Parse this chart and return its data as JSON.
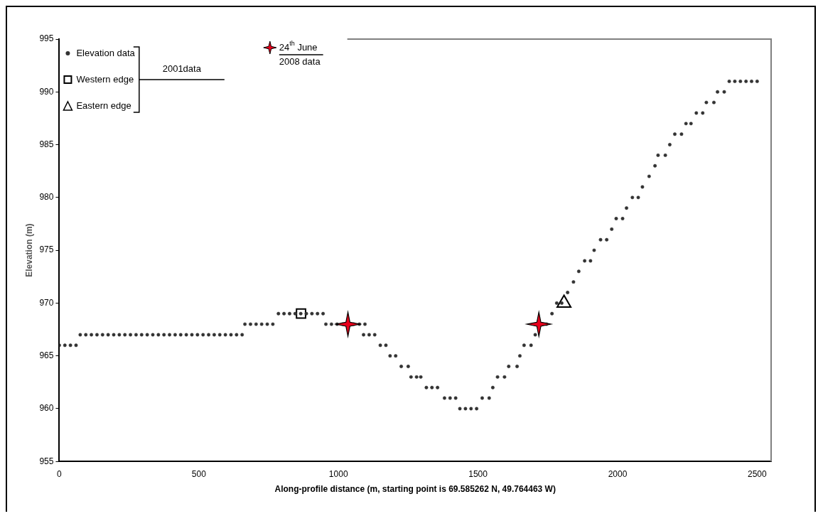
{
  "chart_data": {
    "type": "scatter",
    "xlabel": "Along-profile distance (m, starting point is 69.585262 N, 49.764463 W)",
    "ylabel": "Elevation (m)",
    "legend_title": "2001data",
    "xlim": [
      0,
      2550
    ],
    "xticks": [
      0,
      500,
      1000,
      1500,
      2000,
      2500
    ],
    "ylim": [
      955,
      995
    ],
    "yticks": [
      955,
      960,
      965,
      970,
      975,
      980,
      985,
      990,
      995
    ],
    "grid": false,
    "legend": "top left",
    "series": [
      {
        "name": "Elevation data",
        "color": "#333333",
        "marker": "circle",
        "x": [
          0,
          20,
          40,
          60,
          75,
          95,
          115,
          135,
          155,
          175,
          195,
          215,
          235,
          255,
          275,
          295,
          315,
          335,
          355,
          375,
          395,
          415,
          435,
          455,
          475,
          495,
          515,
          535,
          555,
          575,
          595,
          615,
          635,
          655,
          665,
          685,
          705,
          725,
          745,
          765,
          785,
          805,
          825,
          845,
          865,
          885,
          905,
          925,
          945,
          955,
          975,
          995,
          1015,
          1055,
          1075,
          1095,
          1090,
          1110,
          1130,
          1150,
          1170,
          1185,
          1205,
          1225,
          1250,
          1260,
          1280,
          1295,
          1315,
          1335,
          1355,
          1380,
          1400,
          1420,
          1435,
          1455,
          1475,
          1495,
          1515,
          1540,
          1553,
          1570,
          1595,
          1610,
          1640,
          1650,
          1665,
          1690,
          1705,
          1745,
          1765,
          1782,
          1800,
          1821,
          1842,
          1861,
          1882,
          1903,
          1916,
          1939,
          1961,
          1979,
          1995,
          2018,
          2032,
          2053,
          2074,
          2089,
          2113,
          2134,
          2145,
          2171,
          2187,
          2205,
          2229,
          2245,
          2263,
          2282,
          2305,
          2318,
          2345,
          2358,
          2382,
          2400,
          2420,
          2440,
          2460,
          2480,
          2500
        ],
        "values": [
          966,
          966,
          966,
          966,
          967,
          967,
          967,
          967,
          967,
          967,
          967,
          967,
          967,
          967,
          967,
          967,
          967,
          967,
          967,
          967,
          967,
          967,
          967,
          967,
          967,
          967,
          967,
          967,
          967,
          967,
          967,
          967,
          967,
          967,
          968,
          968,
          968,
          968,
          968,
          968,
          969,
          969,
          969,
          969,
          969,
          969,
          969,
          969,
          969,
          968,
          968,
          968,
          968,
          968,
          968,
          968,
          967,
          967,
          967,
          966,
          966,
          965,
          965,
          964,
          964,
          963,
          963,
          963,
          962,
          962,
          962,
          961,
          961,
          961,
          960,
          960,
          960,
          960,
          961,
          961,
          962,
          963,
          963,
          964,
          964,
          965,
          966,
          966,
          967,
          968,
          969,
          970,
          970,
          971,
          972,
          973,
          974,
          974,
          975,
          976,
          976,
          977,
          978,
          978,
          979,
          980,
          980,
          981,
          982,
          983,
          984,
          984,
          985,
          986,
          986,
          987,
          987,
          988,
          988,
          989,
          989,
          990,
          990,
          991,
          991,
          991,
          991,
          991,
          991
        ]
      },
      {
        "name": "Western edge",
        "color": "#000000",
        "marker": "square",
        "x": [
          866
        ],
        "values": [
          969
        ]
      },
      {
        "name": "Eastern edge",
        "color": "#000000",
        "marker": "triangle",
        "x": [
          1808
        ],
        "values": [
          970
        ]
      },
      {
        "name": "24$^{th}$ June 2008 data",
        "color": "#e8001c",
        "marker": "star",
        "x": [
          1034,
          1718
        ],
        "values": [
          968,
          968
        ]
      }
    ]
  }
}
